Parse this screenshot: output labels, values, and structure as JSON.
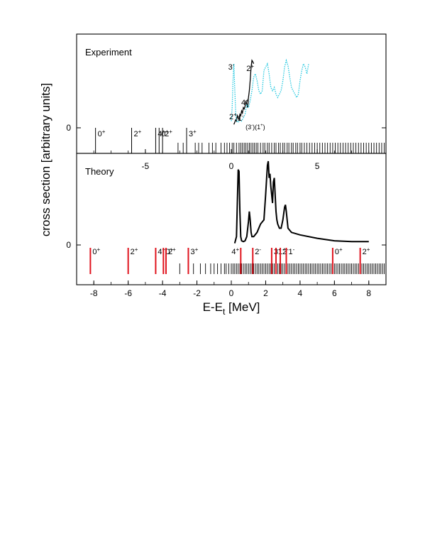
{
  "figure": {
    "ylabel": "cross section [arbitrary units]",
    "xlabel_main": "E-E",
    "xlabel_sub": "t",
    "xlabel_unit": " [MeV]"
  },
  "chart_data": [
    {
      "panel": "top",
      "type": "line",
      "label": "Experiment",
      "x_top_ticks": [
        -5,
        0,
        5
      ],
      "xlim_top": [
        -9.0,
        9.0
      ],
      "yticks": [
        0
      ],
      "curves": [
        {
          "style": "solid",
          "color": "#000000",
          "x": [
            0.15,
            0.2,
            0.25,
            0.3,
            0.35,
            0.4,
            0.45,
            0.5,
            0.55,
            0.6,
            0.65,
            0.7,
            0.75,
            0.8,
            0.85,
            0.9,
            0.95,
            1.0,
            1.05,
            1.1,
            1.15,
            1.2,
            1.25,
            1.3
          ],
          "y": [
            0.05,
            0.08,
            0.12,
            0.1,
            0.18,
            0.15,
            0.12,
            0.2,
            0.18,
            0.25,
            0.22,
            0.3,
            0.28,
            0.32,
            0.4,
            0.35,
            0.3,
            0.45,
            0.55,
            0.7,
            0.9,
            1.0,
            0.98,
            0.95
          ]
        },
        {
          "style": "dotted",
          "color": "#22c8e0",
          "x": [
            0.0,
            0.05,
            0.1,
            0.15,
            0.2,
            0.25,
            0.3,
            0.4,
            0.5,
            0.6,
            0.7,
            0.8,
            0.9,
            1.0,
            1.1,
            1.2,
            1.3,
            1.4,
            1.5,
            1.6,
            1.7,
            1.8,
            1.9,
            2.0,
            2.1,
            2.2,
            2.3,
            2.4,
            2.5,
            2.6,
            2.7,
            2.8,
            2.9,
            3.0,
            3.1,
            3.2,
            3.3,
            3.4,
            3.5,
            3.6,
            3.7,
            3.8,
            3.9,
            4.0,
            4.1,
            4.2,
            4.3,
            4.4,
            4.5
          ],
          "y": [
            0.1,
            0.3,
            0.7,
            0.95,
            0.6,
            0.25,
            0.1,
            0.08,
            0.12,
            0.1,
            0.15,
            0.2,
            0.35,
            0.3,
            0.4,
            0.55,
            0.75,
            0.8,
            0.7,
            0.55,
            0.5,
            0.55,
            0.85,
            0.9,
            0.95,
            0.8,
            0.6,
            0.55,
            0.6,
            0.5,
            0.45,
            0.5,
            0.55,
            0.7,
            0.9,
            1.0,
            0.92,
            0.75,
            0.6,
            0.55,
            0.5,
            0.45,
            0.5,
            0.7,
            0.85,
            0.95,
            0.9,
            0.8,
            0.95
          ]
        }
      ],
      "peak_labels": [
        {
          "text": "3",
          "sup": "-",
          "x": 0.05
        },
        {
          "text": "2",
          "sup": "+",
          "x": 1.15
        },
        {
          "text": "4",
          "sup": "+",
          "x": 0.75
        },
        {
          "text": "2",
          "sup": "+",
          "x": 0.1
        },
        {
          "text": "1",
          "sup": "-",
          "x": 0.55
        },
        {
          "text": "(3",
          "sup": "-",
          "text2": ")(1",
          "sup2": "+",
          "text3": ")",
          "x": 1.3
        }
      ],
      "levels_labeled": [
        {
          "x": -7.9,
          "text": "0",
          "sup": "+"
        },
        {
          "x": -5.8,
          "text": "2",
          "sup": "+"
        },
        {
          "x": -4.4,
          "text": "4",
          "sup": "+"
        },
        {
          "x": -4.2,
          "text": "0",
          "sup": "+"
        },
        {
          "x": -4.0,
          "text": "2",
          "sup": "+"
        },
        {
          "x": -2.6,
          "text": "3",
          "sup": "+"
        }
      ],
      "levels_unlabeled": [
        -3.1,
        -2.8,
        -2.1,
        -1.9,
        -1.7,
        -1.3,
        -1.1,
        -0.9,
        -0.6,
        -0.4,
        -0.25,
        -0.1,
        0.05,
        0.15,
        0.3,
        0.45,
        0.55,
        0.65,
        0.75,
        0.85,
        0.95,
        1.05,
        1.15,
        1.25,
        1.35,
        1.45,
        1.55,
        1.7,
        1.85,
        1.95,
        2.1,
        2.2,
        2.35,
        2.5,
        2.6,
        2.75,
        2.85,
        3.0,
        3.1,
        3.25,
        3.35,
        3.5,
        3.6,
        3.75,
        3.85,
        4.0,
        4.1,
        4.25,
        4.4,
        4.55,
        4.7,
        4.85,
        5.0,
        5.15,
        5.3,
        5.45,
        5.6,
        5.75,
        5.9,
        6.05,
        6.2,
        6.35,
        6.5,
        6.65,
        6.8,
        6.95,
        7.1,
        7.25,
        7.4,
        7.55,
        7.7,
        7.85,
        8.0,
        8.15,
        8.3,
        8.45,
        8.6,
        8.75,
        8.9
      ]
    },
    {
      "panel": "bottom",
      "type": "line",
      "label": "Theory",
      "xlim": [
        -9.0,
        9.0
      ],
      "xticks": [
        -8,
        -6,
        -4,
        -2,
        0,
        2,
        4,
        6,
        8
      ],
      "yticks": [
        0
      ],
      "curves": [
        {
          "style": "solid",
          "color": "#000000",
          "width": 2,
          "x": [
            0.2,
            0.3,
            0.35,
            0.4,
            0.45,
            0.5,
            0.55,
            0.6,
            0.7,
            0.8,
            0.9,
            1.0,
            1.05,
            1.1,
            1.15,
            1.2,
            1.3,
            1.5,
            1.7,
            1.9,
            2.0,
            2.1,
            2.15,
            2.2,
            2.25,
            2.3,
            2.4,
            2.45,
            2.5,
            2.55,
            2.6,
            2.65,
            2.7,
            2.8,
            2.9,
            3.0,
            3.1,
            3.15,
            3.2,
            3.3,
            3.5,
            4.0,
            5.0,
            6.0,
            7.0,
            8.0
          ],
          "y": [
            0.02,
            0.1,
            0.5,
            0.9,
            0.88,
            0.4,
            0.1,
            0.05,
            0.04,
            0.05,
            0.1,
            0.28,
            0.4,
            0.3,
            0.15,
            0.1,
            0.1,
            0.15,
            0.25,
            0.3,
            0.6,
            0.95,
            1.0,
            0.8,
            0.85,
            0.7,
            0.5,
            0.75,
            0.8,
            0.6,
            0.4,
            0.3,
            0.25,
            0.2,
            0.2,
            0.3,
            0.45,
            0.48,
            0.4,
            0.2,
            0.15,
            0.12,
            0.08,
            0.05,
            0.04,
            0.04
          ]
        }
      ],
      "levels_red": [
        {
          "x": -8.2,
          "text": "0",
          "sup": "+"
        },
        {
          "x": -6.0,
          "text": "2",
          "sup": "+"
        },
        {
          "x": -4.4,
          "text": "4",
          "sup": "+"
        },
        {
          "x": -3.95,
          "text": "0",
          "sup": "+"
        },
        {
          "x": -3.8,
          "text": "2",
          "sup": "+"
        },
        {
          "x": -2.5,
          "text": "3",
          "sup": "+"
        },
        {
          "x": 0.55,
          "text": "4",
          "sup": "+",
          "label_side": "left"
        },
        {
          "x": 1.25,
          "text": "2",
          "sup": "-"
        },
        {
          "x": 2.35,
          "text": "3",
          "sup": "+"
        },
        {
          "x": 2.6,
          "text": "1",
          "sup": "+"
        },
        {
          "x": 2.85,
          "text": "2",
          "sup": "-"
        },
        {
          "x": 3.2,
          "text": "1",
          "sup": "-"
        },
        {
          "x": 5.9,
          "text": "0",
          "sup": "+"
        },
        {
          "x": 7.5,
          "text": "2",
          "sup": "+"
        }
      ],
      "levels_black": [
        -3.0,
        -2.2,
        -1.8,
        -1.5,
        -1.2,
        -1.0,
        -0.8,
        -0.6,
        -0.4,
        -0.3,
        -0.15,
        0.0,
        0.1,
        0.2,
        0.3,
        0.4,
        0.5,
        0.6,
        0.7,
        0.8,
        0.9,
        1.0,
        1.1,
        1.2,
        1.3,
        1.4,
        1.5,
        1.6,
        1.7,
        1.8,
        1.9,
        2.0,
        2.1,
        2.2,
        2.3,
        2.4,
        2.5,
        2.6,
        2.7,
        2.8,
        2.9,
        3.0,
        3.1,
        3.2,
        3.3,
        3.4,
        3.5,
        3.6,
        3.7,
        3.8,
        3.9,
        4.0,
        4.1,
        4.2,
        4.3,
        4.4,
        4.5,
        4.6,
        4.7,
        4.8,
        4.9,
        5.0,
        5.1,
        5.2,
        5.3,
        5.4,
        5.5,
        5.6,
        5.7,
        5.8,
        5.9,
        6.0,
        6.1,
        6.2,
        6.3,
        6.4,
        6.5,
        6.6,
        6.7,
        6.8,
        6.9,
        7.0,
        7.1,
        7.2,
        7.3,
        7.4,
        7.5,
        7.6,
        7.7,
        7.8,
        7.9,
        8.0,
        8.1,
        8.2,
        8.3,
        8.4,
        8.5,
        8.6,
        8.7,
        8.8,
        8.9
      ]
    }
  ]
}
